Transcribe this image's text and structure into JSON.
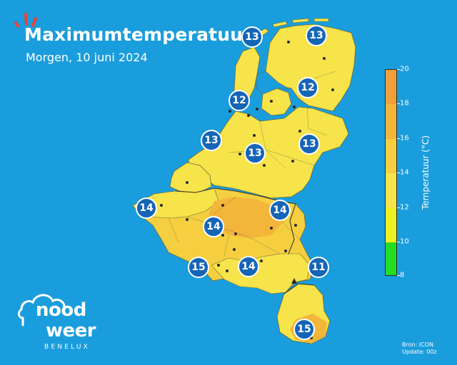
{
  "header": {
    "title": "Maximumtemperatuur",
    "subtitle": "Morgen, 10 juni 2024"
  },
  "map": {
    "region": "Benelux",
    "background_color": "#1a9ddc",
    "land_colors": {
      "12-14": "#f7e34a",
      "14-16": "#f3c43c",
      "16-18": "#f0a83a",
      "border": "#6b6b3a"
    },
    "stations": [
      {
        "id": "den-helder",
        "value": 13
      },
      {
        "id": "groningen",
        "value": 13
      },
      {
        "id": "lelystad",
        "value": 12
      },
      {
        "id": "enschede-area",
        "value": 12
      },
      {
        "id": "rotterdam",
        "value": 13
      },
      {
        "id": "utrecht",
        "value": 13
      },
      {
        "id": "achterhoek",
        "value": 13
      },
      {
        "id": "de-panne",
        "value": 14
      },
      {
        "id": "limburg-be",
        "value": 14
      },
      {
        "id": "brussel",
        "value": 14
      },
      {
        "id": "henegouwen",
        "value": 15
      },
      {
        "id": "namen",
        "value": 14
      },
      {
        "id": "oostkantons",
        "value": 11
      },
      {
        "id": "luxemburg",
        "value": 15
      }
    ]
  },
  "legend": {
    "title": "Temperatuur (°C)",
    "min": 8,
    "max": 20,
    "ticks": [
      "8",
      "10",
      "12",
      "14",
      "16",
      "18",
      "20"
    ],
    "bands": [
      {
        "from": 8,
        "to": 10,
        "color": "#22dd22"
      },
      {
        "from": 10,
        "to": 12,
        "color": "#eef020"
      },
      {
        "from": 12,
        "to": 14,
        "color": "#f7e34a"
      },
      {
        "from": 14,
        "to": 16,
        "color": "#f5cf40"
      },
      {
        "from": 16,
        "to": 18,
        "color": "#f3b53a"
      },
      {
        "from": 18,
        "to": 20,
        "color": "#f0a038"
      }
    ]
  },
  "branding": {
    "logo_line1": "nood",
    "logo_line2": "weer",
    "logo_line3": "BENELUX"
  },
  "footer": {
    "source": "Bron: ICON",
    "update": "Update: 00z"
  }
}
